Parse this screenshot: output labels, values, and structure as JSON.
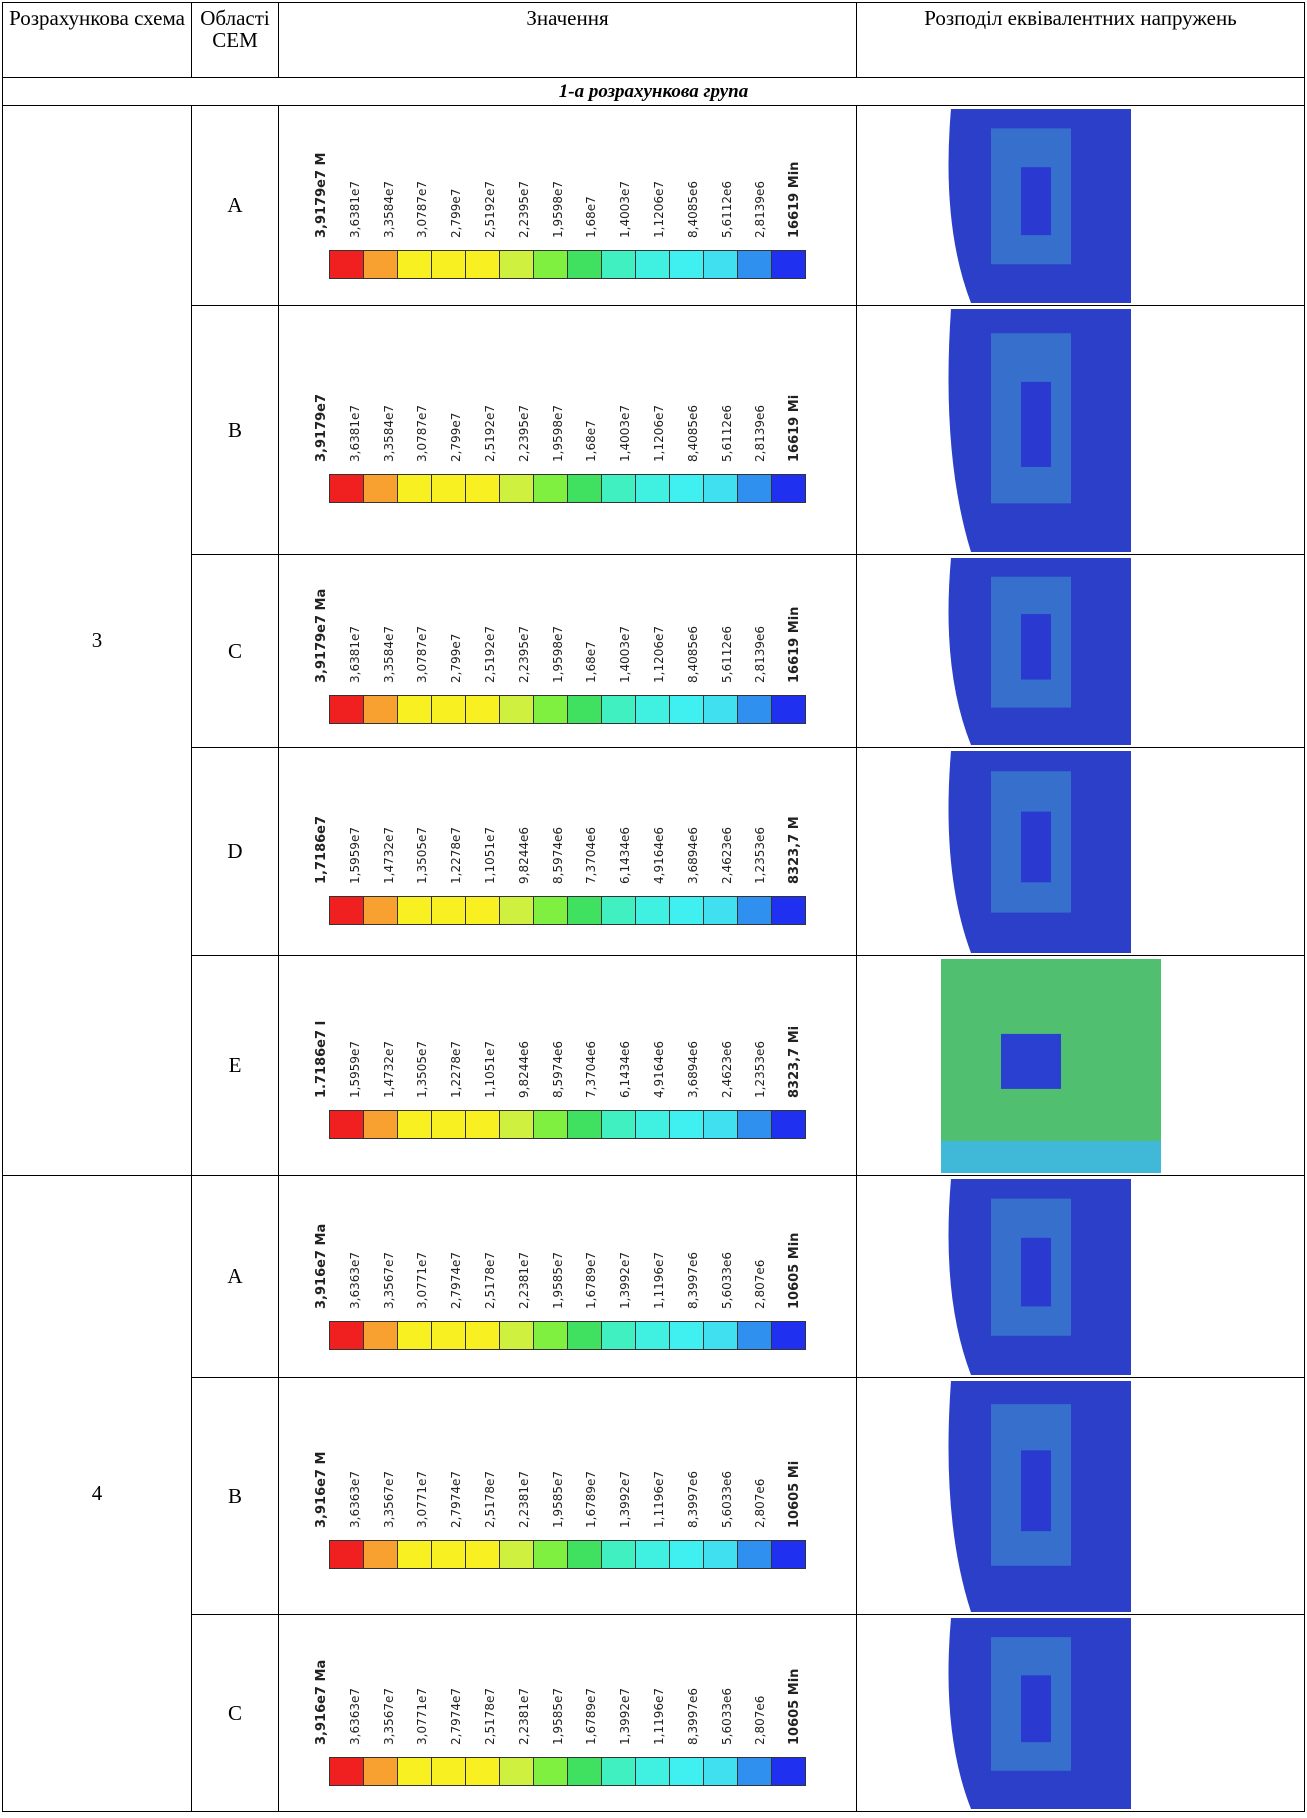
{
  "header": {
    "scheme": "Розрахункова схема",
    "region": "Області СЕМ",
    "values": "Значення",
    "distribution": "Розподіл еквівалентних напружень"
  },
  "group_title": "1-а розрахункова група",
  "schemes": [
    {
      "label": "3",
      "rows": [
        {
          "region": "A",
          "labels": [
            "3,9179e7 M",
            "3,6381e7",
            "3,3584e7",
            "3,0787e7",
            "2,799e7",
            "2,5192e7",
            "2,2395e7",
            "1,9598e7",
            "1,68e7",
            "1,4003e7",
            "1,1206e7",
            "8,4085e6",
            "5,6112e6",
            "2,8139e6",
            "16619 Min"
          ]
        },
        {
          "region": "B",
          "labels": [
            "3,9179e7",
            "3,6381e7",
            "3,3584e7",
            "3,0787e7",
            "2,799e7",
            "2,5192e7",
            "2,2395e7",
            "1,9598e7",
            "1,68e7",
            "1,4003e7",
            "1,1206e7",
            "8,4085e6",
            "5,6112e6",
            "2,8139e6",
            "16619 Mi"
          ]
        },
        {
          "region": "C",
          "labels": [
            "3,9179e7 Ma",
            "3,6381e7",
            "3,3584e7",
            "3,0787e7",
            "2,799e7",
            "2,5192e7",
            "2,2395e7",
            "1,9598e7",
            "1,68e7",
            "1,4003e7",
            "1,1206e7",
            "8,4085e6",
            "5,6112e6",
            "2,8139e6",
            "16619 Min"
          ]
        },
        {
          "region": "D",
          "labels": [
            "1,7186e7",
            "1,5959e7",
            "1,4732e7",
            "1,3505e7",
            "1,2278e7",
            "1,1051e7",
            "9,8244e6",
            "8,5974e6",
            "7,3704e6",
            "6,1434e6",
            "4,9164e6",
            "3,6894e6",
            "2,4623e6",
            "1,2353e6",
            "8323,7 M"
          ]
        },
        {
          "region": "E",
          "labels": [
            "1.7186e7 I",
            "1,5959e7",
            "1,4732e7",
            "1,3505e7",
            "1,2278e7",
            "1,1051e7",
            "9,8244e6",
            "8,5974e6",
            "7,3704e6",
            "6,1434e6",
            "4,9164e6",
            "3,6894e6",
            "2,4623e6",
            "1,2353e6",
            "8323,7 Mi"
          ]
        }
      ]
    },
    {
      "label": "4",
      "rows": [
        {
          "region": "A",
          "labels": [
            "3,916e7 Ma",
            "3,6363e7",
            "3,3567e7",
            "3,0771e7",
            "2,7974e7",
            "2,5178e7",
            "2,2381e7",
            "1,9585e7",
            "1,6789e7",
            "1,3992e7",
            "1,1196e7",
            "8,3997e6",
            "5,6033e6",
            "2,807e6",
            "10605 Min"
          ]
        },
        {
          "region": "B",
          "labels": [
            "3,916e7 M",
            "3,6363e7",
            "3,3567e7",
            "3,0771e7",
            "2,7974e7",
            "2,5178e7",
            "2,2381e7",
            "1,9585e7",
            "1,6789e7",
            "1,3992e7",
            "1,1196e7",
            "8,3997e6",
            "5,6033e6",
            "2,807e6",
            "10605 Mi"
          ]
        },
        {
          "region": "C",
          "labels": [
            "3,916e7 Ma",
            "3,6363e7",
            "3,3567e7",
            "3,0771e7",
            "2,7974e7",
            "2,5178e7",
            "2,2381e7",
            "1,9585e7",
            "1,6789e7",
            "1,3992e7",
            "1,1196e7",
            "8,3997e6",
            "5,6033e6",
            "2,807e6",
            "10605 Min"
          ]
        }
      ]
    }
  ]
}
